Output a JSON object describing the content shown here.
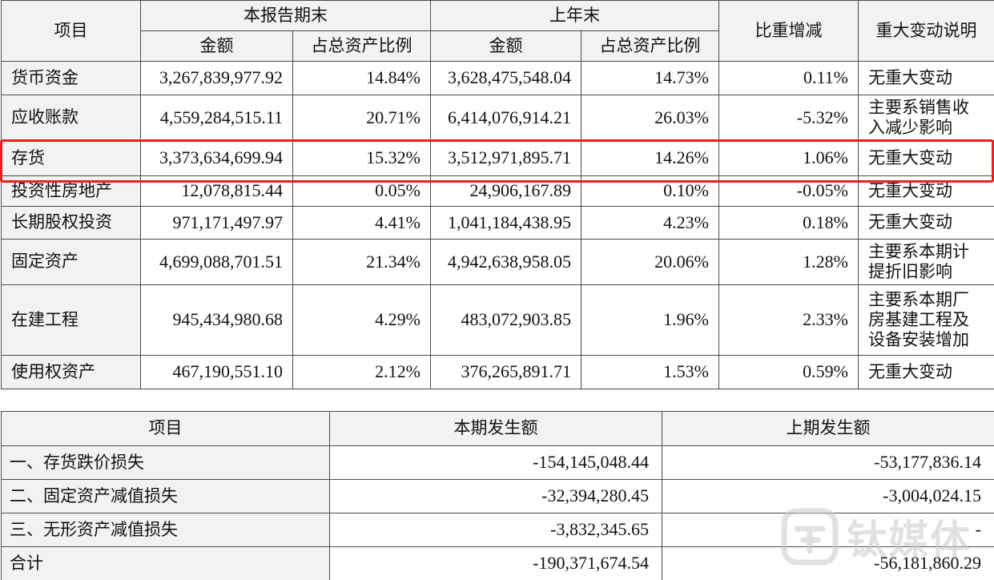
{
  "table1": {
    "headers": {
      "item": "项目",
      "current_period_end": "本报告期末",
      "prior_year_end": "上年末",
      "amount": "金额",
      "ratio": "占总资产比例",
      "change": "比重增减",
      "explanation": "重大变动说明"
    },
    "rows": [
      {
        "name": "货币资金",
        "cur_amount": "3,267,839,977.92",
        "cur_ratio": "14.84%",
        "prev_amount": "3,628,475,548.04",
        "prev_ratio": "14.73%",
        "change": "0.11%",
        "note": [
          "无重大变动"
        ]
      },
      {
        "name": "应收账款",
        "cur_amount": "4,559,284,515.11",
        "cur_ratio": "20.71%",
        "prev_amount": "6,414,076,914.21",
        "prev_ratio": "26.03%",
        "change": "-5.32%",
        "note": [
          "主要系销售收",
          "入减少影响"
        ]
      },
      {
        "name": "存货",
        "cur_amount": "3,373,634,699.94",
        "cur_ratio": "15.32%",
        "prev_amount": "3,512,971,895.71",
        "prev_ratio": "14.26%",
        "change": "1.06%",
        "note": [
          "无重大变动"
        ]
      },
      {
        "name": "投资性房地产",
        "cur_amount": "12,078,815.44",
        "cur_ratio": "0.05%",
        "prev_amount": "24,906,167.89",
        "prev_ratio": "0.10%",
        "change": "-0.05%",
        "note": [
          "无重大变动"
        ]
      },
      {
        "name": "长期股权投资",
        "cur_amount": "971,171,497.97",
        "cur_ratio": "4.41%",
        "prev_amount": "1,041,184,438.95",
        "prev_ratio": "4.23%",
        "change": "0.18%",
        "note": [
          "无重大变动"
        ]
      },
      {
        "name": "固定资产",
        "cur_amount": "4,699,088,701.51",
        "cur_ratio": "21.34%",
        "prev_amount": "4,942,638,958.05",
        "prev_ratio": "20.06%",
        "change": "1.28%",
        "note": [
          "主要系本期计",
          "提折旧影响"
        ]
      },
      {
        "name": "在建工程",
        "cur_amount": "945,434,980.68",
        "cur_ratio": "4.29%",
        "prev_amount": "483,072,903.85",
        "prev_ratio": "1.96%",
        "change": "2.33%",
        "note": [
          "主要系本期厂",
          "房基建工程及",
          "设备安装增加"
        ]
      },
      {
        "name": "使用权资产",
        "cur_amount": "467,190,551.10",
        "cur_ratio": "2.12%",
        "prev_amount": "376,265,891.71",
        "prev_ratio": "1.53%",
        "change": "0.59%",
        "note": [
          "无重大变动"
        ]
      }
    ]
  },
  "table2": {
    "headers": {
      "item": "项目",
      "current": "本期发生额",
      "prior": "上期发生额"
    },
    "rows": [
      {
        "name": "一、存货跌价损失",
        "current": "-154,145,048.44",
        "prior": "-53,177,836.14"
      },
      {
        "name": "二、固定资产减值损失",
        "current": "-32,394,280.45",
        "prior": "-3,004,024.15"
      },
      {
        "name": "三、无形资产减值损失",
        "current": "-3,832,345.65",
        "prior": "-"
      },
      {
        "name": "合计",
        "current": "-190,371,674.54",
        "prior": "-56,181,860.29"
      }
    ]
  },
  "watermark": {
    "icon": "tmtpost-logo-icon",
    "text": "钛媒体"
  },
  "colors": {
    "highlight_border": "#e02424",
    "header_bg": "#f2f2f2"
  }
}
